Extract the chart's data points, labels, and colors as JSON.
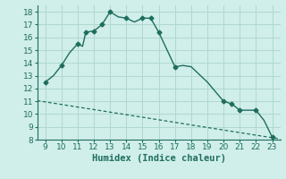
{
  "xlabel": "Humidex (Indice chaleur)",
  "xlim": [
    8.5,
    23.5
  ],
  "ylim": [
    8,
    18.5
  ],
  "xticks": [
    9,
    10,
    11,
    12,
    13,
    14,
    15,
    16,
    17,
    18,
    19,
    20,
    21,
    22,
    23
  ],
  "yticks": [
    8,
    9,
    10,
    11,
    12,
    13,
    14,
    15,
    16,
    17,
    18
  ],
  "curve_x": [
    9,
    9.5,
    10,
    10.5,
    11,
    11.3,
    11.5,
    12,
    12.5,
    13,
    13.5,
    14,
    14.5,
    15,
    15.5,
    16,
    17,
    17.5,
    18,
    19,
    20,
    20.5,
    21,
    22,
    22.5,
    23
  ],
  "curve_y": [
    12.5,
    13.0,
    13.8,
    14.8,
    15.5,
    15.3,
    16.4,
    16.5,
    17.0,
    18.0,
    17.6,
    17.5,
    17.2,
    17.5,
    17.5,
    16.4,
    13.7,
    13.8,
    13.7,
    12.5,
    11.0,
    10.8,
    10.3,
    10.3,
    9.5,
    8.2
  ],
  "marker_x": [
    9,
    10,
    11,
    11.5,
    12,
    12.5,
    13,
    14,
    15,
    15.5,
    16,
    17,
    20,
    20.5,
    21,
    22,
    23
  ],
  "marker_y": [
    12.5,
    13.8,
    15.5,
    16.4,
    16.5,
    17.0,
    18.0,
    17.5,
    17.5,
    17.5,
    16.4,
    13.7,
    11.0,
    10.8,
    10.3,
    10.3,
    8.2
  ],
  "line2_x": [
    8.5,
    23.5
  ],
  "line2_y": [
    11.05,
    8.05
  ],
  "curve_color": "#1e6e5e",
  "bg_color": "#d0eeea",
  "grid_color": "#b0d8d0",
  "tick_fontsize": 6.5,
  "label_fontsize": 7.5
}
